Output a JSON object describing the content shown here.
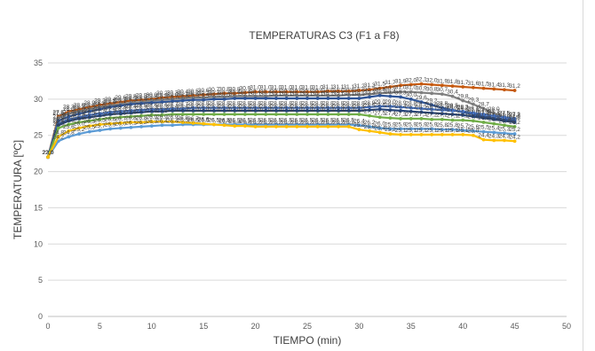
{
  "chart_data": {
    "type": "line",
    "title": "TEMPERATURAS C3 (F1 a F8)",
    "xlabel": "TIEMPO (min)",
    "ylabel": "TEMPERATURA [ºC]",
    "xlim": [
      0,
      50
    ],
    "ylim": [
      0,
      35
    ],
    "xticks": [
      0,
      5,
      10,
      15,
      20,
      25,
      30,
      35,
      40,
      45,
      50
    ],
    "yticks": [
      0,
      5,
      10,
      15,
      20,
      25,
      30,
      35
    ],
    "grid": "horizontal",
    "legend": "none",
    "x": [
      0,
      1,
      2,
      3,
      4,
      5,
      6,
      7,
      8,
      9,
      10,
      11,
      12,
      13,
      14,
      15,
      16,
      17,
      18,
      19,
      20,
      21,
      22,
      23,
      24,
      25,
      26,
      27,
      28,
      29,
      30,
      31,
      32,
      33,
      34,
      35,
      36,
      37,
      38,
      39,
      40,
      41,
      42,
      43,
      44,
      45
    ],
    "series": [
      {
        "color": "#c55a11",
        "values": [
          22.0,
          27.6,
          28.3,
          28.6,
          28.9,
          29.2,
          29.4,
          29.6,
          29.8,
          29.9,
          30.0,
          30.2,
          30.3,
          30.4,
          30.5,
          30.6,
          30.7,
          30.8,
          30.8,
          30.9,
          31.0,
          31.0,
          31.0,
          31.0,
          31.0,
          31.0,
          31.0,
          31.1,
          31.1,
          31.1,
          31.2,
          31.3,
          31.5,
          31.7,
          31.9,
          32.0,
          32.1,
          32.0,
          31.9,
          31.8,
          31.7,
          31.6,
          31.5,
          31.4,
          31.3,
          31.2
        ]
      },
      {
        "color": "#7f7f7f",
        "values": [
          22.0,
          27.4,
          28.0,
          28.3,
          28.6,
          28.9,
          29.1,
          29.3,
          29.5,
          29.6,
          29.8,
          29.9,
          30.0,
          30.1,
          30.2,
          30.2,
          30.3,
          30.3,
          30.4,
          30.4,
          30.4,
          30.4,
          30.5,
          30.5,
          30.5,
          30.5,
          30.5,
          30.5,
          30.5,
          30.6,
          30.6,
          30.7,
          30.8,
          30.9,
          31.0,
          31.0,
          30.9,
          30.8,
          30.7,
          30.4,
          29.8,
          29.3,
          28.7,
          28.0,
          27.5,
          27.2
        ]
      },
      {
        "color": "#2f5597",
        "values": [
          22.0,
          27.0,
          27.6,
          28.0,
          28.3,
          28.6,
          28.9,
          29.1,
          29.3,
          29.4,
          29.5,
          29.6,
          29.7,
          29.8,
          29.9,
          29.9,
          30.0,
          30.0,
          30.1,
          30.1,
          30.1,
          30.1,
          30.1,
          30.1,
          30.1,
          30.1,
          30.1,
          30.1,
          30.1,
          30.1,
          30.1,
          30.3,
          30.5,
          30.4,
          30.3,
          30.0,
          29.6,
          29.2,
          28.8,
          28.5,
          28.2,
          27.9,
          27.6,
          27.4,
          27.2,
          27.0
        ]
      },
      {
        "color": "#4472c4",
        "values": [
          22.0,
          26.6,
          27.2,
          27.5,
          27.8,
          28.0,
          28.2,
          28.3,
          28.4,
          28.5,
          28.6,
          28.6,
          28.7,
          28.7,
          28.8,
          28.8,
          28.8,
          28.8,
          28.8,
          28.8,
          28.8,
          28.8,
          28.8,
          28.8,
          28.8,
          28.8,
          28.8,
          28.8,
          28.8,
          28.8,
          28.8,
          28.9,
          29.0,
          29.0,
          28.9,
          28.8,
          28.7,
          28.6,
          28.5,
          28.4,
          28.3,
          28.1,
          27.9,
          27.7,
          27.5,
          27.3
        ]
      },
      {
        "color": "#264478",
        "values": [
          22.0,
          26.4,
          27.0,
          27.3,
          27.5,
          27.7,
          27.9,
          28.0,
          28.1,
          28.2,
          28.3,
          28.3,
          28.4,
          28.4,
          28.4,
          28.4,
          28.4,
          28.4,
          28.4,
          28.4,
          28.4,
          28.4,
          28.4,
          28.4,
          28.4,
          28.4,
          28.4,
          28.4,
          28.4,
          28.4,
          28.4,
          28.5,
          28.6,
          28.5,
          28.4,
          28.3,
          28.2,
          28.1,
          28.0,
          27.9,
          27.8,
          27.6,
          27.4,
          27.2,
          27.0,
          26.8
        ]
      },
      {
        "color": "#70ad47",
        "values": [
          22.0,
          26.0,
          26.5,
          26.8,
          27.0,
          27.2,
          27.4,
          27.5,
          27.6,
          27.7,
          27.8,
          27.8,
          27.9,
          27.9,
          27.9,
          27.9,
          27.9,
          27.9,
          27.9,
          27.9,
          27.9,
          27.9,
          27.9,
          27.9,
          27.9,
          27.9,
          27.9,
          27.9,
          27.9,
          27.9,
          27.9,
          27.7,
          27.5,
          27.4,
          27.3,
          27.3,
          27.3,
          27.2,
          27.2,
          27.1,
          27.1,
          27.0,
          26.8,
          26.6,
          26.4,
          26.2
        ]
      },
      {
        "color": "#5b9bd5",
        "values": [
          22.0,
          24.2,
          24.8,
          25.2,
          25.5,
          25.7,
          25.9,
          26.0,
          26.1,
          26.2,
          26.3,
          26.4,
          26.4,
          26.5,
          26.5,
          26.5,
          26.5,
          26.5,
          26.5,
          26.5,
          26.5,
          26.5,
          26.5,
          26.5,
          26.5,
          26.5,
          26.5,
          26.5,
          26.5,
          26.5,
          26.4,
          26.2,
          26.0,
          25.9,
          25.9,
          25.9,
          25.9,
          25.9,
          25.8,
          25.8,
          25.7,
          25.6,
          25.5,
          25.4,
          25.3,
          25.2
        ]
      },
      {
        "color": "#ffc000",
        "values": [
          22.0,
          24.8,
          25.6,
          26.0,
          26.3,
          26.5,
          26.6,
          26.7,
          26.8,
          26.8,
          26.9,
          26.9,
          26.9,
          26.8,
          26.7,
          26.6,
          26.5,
          26.4,
          26.3,
          26.3,
          26.2,
          26.2,
          26.2,
          26.2,
          26.2,
          26.2,
          26.2,
          26.2,
          26.2,
          26.2,
          25.8,
          25.6,
          25.4,
          25.2,
          25.1,
          25.1,
          25.1,
          25.1,
          25.1,
          25.1,
          25.1,
          25.0,
          24.4,
          24.3,
          24.3,
          24.2
        ]
      }
    ]
  }
}
